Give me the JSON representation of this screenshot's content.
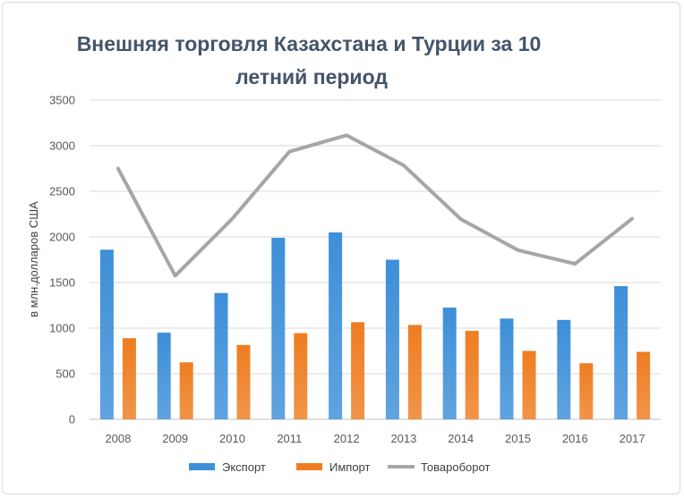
{
  "chart_data": {
    "type": "bar",
    "title_lines": [
      "Внешняя торговля Казахстана и Турции за 10",
      "летний период"
    ],
    "ylabel": "в млн.долларов США",
    "xlabel": "",
    "ylim": [
      0,
      3500
    ],
    "yticks": [
      0,
      500,
      1000,
      1500,
      2000,
      2500,
      3000,
      3500
    ],
    "grid": true,
    "legend_position": "bottom",
    "categories": [
      "2008",
      "2009",
      "2010",
      "2011",
      "2012",
      "2013",
      "2014",
      "2015",
      "2016",
      "2017"
    ],
    "series": [
      {
        "name": "Экспорт",
        "kind": "bar",
        "color": "#3d8fd9",
        "values": [
          1860,
          950,
          1385,
          1990,
          2050,
          1750,
          1225,
          1105,
          1090,
          1460
        ]
      },
      {
        "name": "Импорт",
        "kind": "bar",
        "color": "#ee7d21",
        "values": [
          890,
          625,
          815,
          945,
          1065,
          1035,
          970,
          750,
          615,
          740
        ]
      },
      {
        "name": "Товароборот",
        "kind": "line",
        "color": "#a6a6a6",
        "values": [
          2750,
          1575,
          2200,
          2935,
          3115,
          2785,
          2195,
          1855,
          1705,
          2200
        ]
      }
    ]
  }
}
